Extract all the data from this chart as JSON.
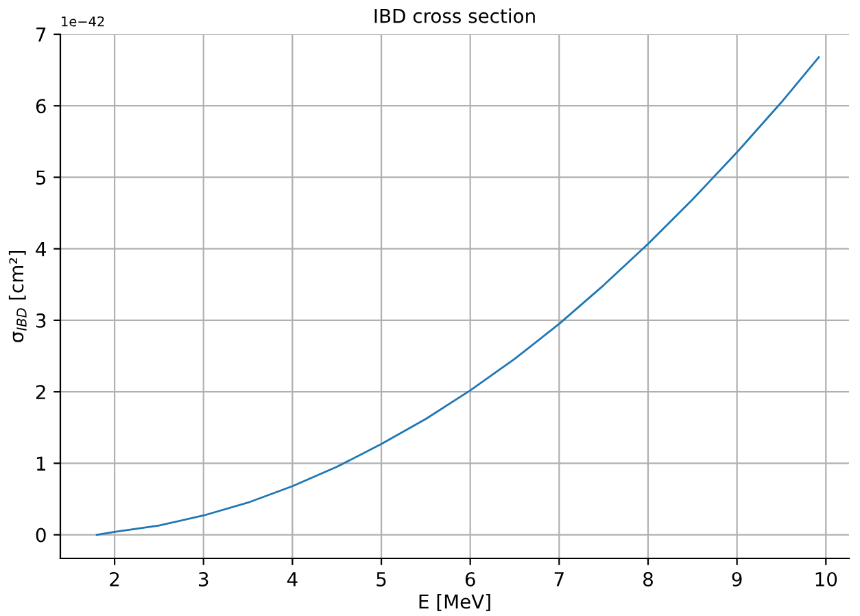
{
  "chart_data": {
    "type": "line",
    "title": "IBD cross section",
    "xlabel": "E [MeV]",
    "ylabel": "σ$_{IBD}$ [cm²]",
    "annotations": [
      "1e−42"
    ],
    "x": [
      1.8,
      2,
      2.5,
      3,
      3.5,
      4,
      4.5,
      5,
      5.5,
      6,
      6.5,
      7,
      7.5,
      8,
      8.5,
      9,
      9.5,
      9.92
    ],
    "series": [
      {
        "color": "#1f77b4",
        "values": [
          0.0,
          0.04,
          0.13,
          0.27,
          0.45,
          0.68,
          0.95,
          1.27,
          1.62,
          2.02,
          2.46,
          2.95,
          3.49,
          4.07,
          4.69,
          5.35,
          6.05,
          6.68
        ]
      }
    ],
    "xlim": [
      1.39,
      10.26
    ],
    "ylim": [
      -0.33,
      7.0
    ],
    "xticks": [
      2,
      3,
      4,
      5,
      6,
      7,
      8,
      9,
      10
    ],
    "yticks": [
      0,
      1,
      2,
      3,
      4,
      5,
      6,
      7
    ],
    "grid": true,
    "marker": "none",
    "line_style": "solid"
  }
}
